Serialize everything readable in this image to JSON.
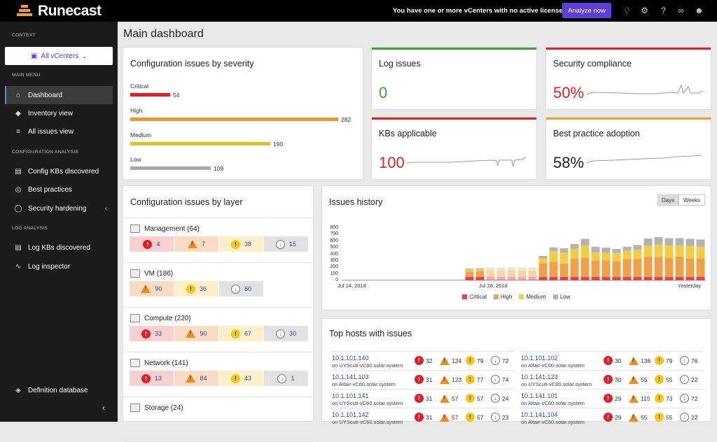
{
  "app": {
    "name": "Runecast",
    "license_message": "You have one or more vCenters with no active licenses",
    "analyze_label": "Analyze now"
  },
  "sidebar": {
    "context_label": "CONTEXT",
    "context_value": "All vCenters",
    "main_menu_label": "MAIN MENU",
    "config_label": "CONFIGURATION ANALYSIS",
    "log_label": "LOG ANALYSIS",
    "items": [
      {
        "label": "Dashboard",
        "icon": "home-icon"
      },
      {
        "label": "Inventory view",
        "icon": "inventory-icon"
      },
      {
        "label": "All issues view",
        "icon": "layers-icon"
      },
      {
        "label": "Config KBs discovered",
        "icon": "book-icon"
      },
      {
        "label": "Best practices",
        "icon": "globe-icon"
      },
      {
        "label": "Security hardening",
        "icon": "shield-icon"
      },
      {
        "label": "Log KBs discovered",
        "icon": "book-icon"
      },
      {
        "label": "Log inspector",
        "icon": "chart-line-icon"
      },
      {
        "label": "Definition database",
        "icon": "diamond-icon"
      }
    ]
  },
  "main": {
    "title": "Main dashboard"
  },
  "severity": {
    "title": "Configuration issues by severity",
    "rows": [
      {
        "label": "Critical",
        "value": 54,
        "color": "#e41e26"
      },
      {
        "label": "High",
        "value": 282,
        "color": "#e8962e"
      },
      {
        "label": "Medium",
        "value": 190,
        "color": "#e3bf2a"
      },
      {
        "label": "Low",
        "value": 109,
        "color": "#a8a8a8"
      }
    ]
  },
  "metrics": {
    "log_issues": {
      "title": "Log issues",
      "value": "0",
      "color": "#3aa52f"
    },
    "security": {
      "title": "Security compliance",
      "value": "50%",
      "color": "#e41e26"
    },
    "kbs": {
      "title": "KBs applicable",
      "value": "100",
      "color": "#e41e26"
    },
    "best_practice": {
      "title": "Best practice adoption",
      "value": "58%",
      "color": "#f0a030"
    }
  },
  "layers": {
    "title": "Configuration issues by layer",
    "rows": [
      {
        "name": "Management (64)",
        "cells": [
          {
            "t": "crit",
            "v": "4"
          },
          {
            "t": "high",
            "v": "7"
          },
          {
            "t": "med",
            "v": "38"
          },
          {
            "t": "low",
            "v": "15"
          }
        ]
      },
      {
        "name": "VM (186)",
        "cells": [
          {
            "t": "high",
            "v": "90"
          },
          {
            "t": "med",
            "v": "36"
          },
          {
            "t": "low",
            "v": "60"
          }
        ]
      },
      {
        "name": "Compute (220)",
        "cells": [
          {
            "t": "crit",
            "v": "33"
          },
          {
            "t": "high",
            "v": "90"
          },
          {
            "t": "med",
            "v": "67"
          },
          {
            "t": "low",
            "v": "30"
          }
        ]
      },
      {
        "name": "Network (141)",
        "cells": [
          {
            "t": "crit",
            "v": "13"
          },
          {
            "t": "high",
            "v": "84"
          },
          {
            "t": "med",
            "v": "43"
          },
          {
            "t": "low",
            "v": "1"
          }
        ]
      },
      {
        "name": "Storage (24)",
        "cells": []
      }
    ]
  },
  "history": {
    "title": "Issues history",
    "toggle_days": "Days",
    "toggle_weeks": "Weeks"
  },
  "chart_data": {
    "type": "bar",
    "title": "Issues history",
    "ylim": [
      0,
      800
    ],
    "yticks": [
      "800",
      "700",
      "600",
      "500",
      "400",
      "300",
      "200",
      "100",
      "0"
    ],
    "x_labels": [
      {
        "text": "Jul 14, 2018",
        "index": 0
      },
      {
        "text": "Jul 28, 2018",
        "index": 14
      },
      {
        "text": "Yesterday",
        "index": 28
      }
    ],
    "legend_position": "bottom",
    "series": [
      {
        "name": "Critical",
        "color": "#e8434b",
        "values": [
          0,
          0,
          0,
          0,
          0,
          0,
          0,
          0,
          0,
          0,
          0,
          55,
          55,
          55,
          55,
          55,
          55,
          55,
          55,
          55,
          55,
          55,
          55,
          55,
          55,
          55,
          55,
          55,
          55,
          55,
          55,
          55,
          55,
          55
        ]
      },
      {
        "name": "High",
        "color": "#eea04a",
        "values": [
          0,
          0,
          0,
          0,
          0,
          0,
          0,
          0,
          0,
          0,
          0,
          80,
          85,
          95,
          95,
          95,
          95,
          95,
          210,
          230,
          200,
          280,
          290,
          250,
          250,
          240,
          270,
          270,
          310,
          305,
          290,
          310,
          280,
          280
        ]
      },
      {
        "name": "Medium",
        "color": "#f2cc45",
        "values": [
          0,
          0,
          0,
          0,
          0,
          0,
          0,
          0,
          0,
          0,
          0,
          30,
          30,
          30,
          30,
          30,
          30,
          30,
          70,
          160,
          170,
          150,
          190,
          120,
          115,
          125,
          130,
          145,
          165,
          190,
          190,
          170,
          190,
          180
        ]
      },
      {
        "name": "Low",
        "color": "#b3b3b3",
        "values": [
          0,
          0,
          0,
          0,
          0,
          0,
          0,
          0,
          0,
          0,
          0,
          15,
          15,
          15,
          15,
          15,
          15,
          15,
          40,
          60,
          65,
          70,
          100,
          90,
          80,
          60,
          60,
          70,
          110,
          110,
          110,
          110,
          110,
          110
        ]
      }
    ]
  },
  "hosts": {
    "title": "Top hosts with issues",
    "items": [
      {
        "ip": "10.1.101.140",
        "sys": "on UYScuti-vC60.solar.system",
        "c": "32",
        "h": "124",
        "m": "79",
        "l": "72"
      },
      {
        "ip": "10.1.101.102",
        "sys": "on Altair-vC60.solar.system",
        "c": "30",
        "h": "136",
        "m": "79",
        "l": "76"
      },
      {
        "ip": "10.1.141.103",
        "sys": "on Altair-vC60.solar.system",
        "c": "31",
        "h": "123",
        "m": "77",
        "l": "74"
      },
      {
        "ip": "10.1.141.123",
        "sys": "on UYScuti-vC60.solar.system",
        "c": "30",
        "h": "55",
        "m": "55",
        "l": "22"
      },
      {
        "ip": "10.1.101.141",
        "sys": "on UYScuti-vC60.solar.system",
        "c": "31",
        "h": "57",
        "m": "57",
        "l": "24"
      },
      {
        "ip": "10.1.141.101",
        "sys": "on Altair-vC60.solar.system",
        "c": "29",
        "h": "115",
        "m": "73",
        "l": "72"
      },
      {
        "ip": "10.1.101.142",
        "sys": "on UYScuti-vC60.solar.system",
        "c": "31",
        "h": "57",
        "m": "57",
        "l": "23"
      },
      {
        "ip": "10.1.141.104",
        "sys": "on Altair-vC60.solar.system",
        "c": "29",
        "h": "55",
        "m": "55",
        "l": "22"
      }
    ]
  }
}
